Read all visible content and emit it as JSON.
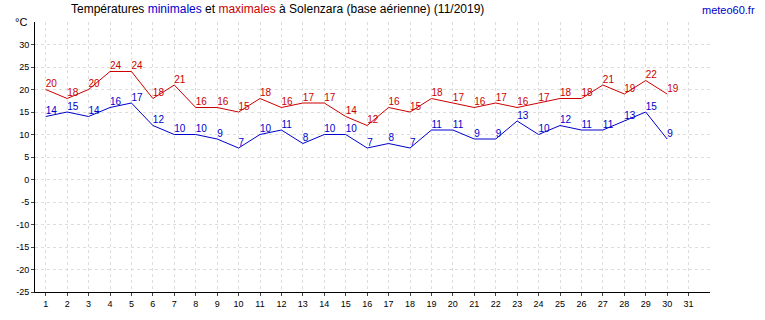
{
  "chart_data": {
    "type": "line",
    "title": "Températures minimales et maximales à Solenzara (base aérienne) (11/2019)",
    "source": "meteo60.fr",
    "y_label": "°C",
    "x": [
      1,
      2,
      3,
      4,
      5,
      6,
      7,
      8,
      9,
      10,
      11,
      12,
      13,
      14,
      15,
      16,
      17,
      18,
      19,
      20,
      21,
      22,
      23,
      24,
      25,
      26,
      27,
      28,
      29,
      30
    ],
    "series": [
      {
        "name": "minimales",
        "color": "#0000cc",
        "values": [
          14,
          15,
          14,
          16,
          17,
          12,
          10,
          10,
          9,
          7,
          10,
          11,
          8,
          10,
          10,
          7,
          8,
          7,
          11,
          11,
          9,
          9,
          13,
          10,
          12,
          11,
          11,
          13,
          15,
          9
        ]
      },
      {
        "name": "maximales",
        "color": "#cc0000",
        "values": [
          20,
          18,
          20,
          24,
          24,
          18,
          21,
          16,
          16,
          15,
          18,
          16,
          17,
          17,
          14,
          12,
          16,
          15,
          18,
          17,
          16,
          17,
          16,
          17,
          18,
          18,
          21,
          19,
          22,
          19
        ]
      }
    ],
    "xlim": [
      0.5,
      32
    ],
    "xticks": [
      1,
      2,
      3,
      4,
      5,
      6,
      7,
      8,
      9,
      10,
      11,
      12,
      13,
      14,
      15,
      16,
      17,
      18,
      19,
      20,
      21,
      22,
      23,
      24,
      25,
      26,
      27,
      28,
      29,
      30,
      31
    ],
    "ylim": [
      -25,
      35
    ],
    "yticks": [
      -25,
      -20,
      -15,
      -10,
      -5,
      0,
      5,
      10,
      15,
      20,
      25,
      30
    ],
    "grid": true,
    "data_labels": true
  }
}
